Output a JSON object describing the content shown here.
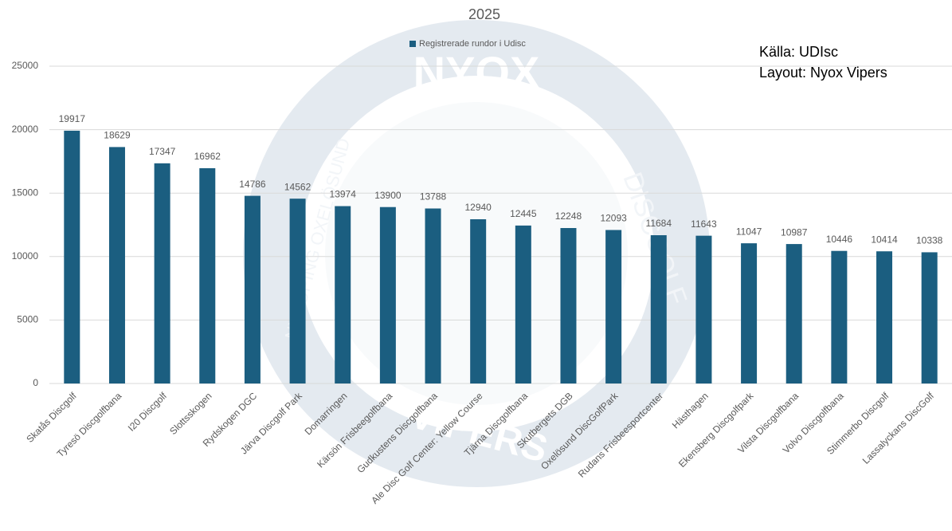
{
  "chart_data": {
    "type": "bar",
    "title": "2025",
    "legend": "Registrerade rundor i Udisc",
    "annotations": [
      "Källa: UDIsc",
      "Layout: Nyox Vipers"
    ],
    "watermark": [
      "NYOX",
      "DISCGOLF",
      "NYKÖPING OXELÖSUND",
      "VIPERS"
    ],
    "categories": [
      "Skatås Discgolf",
      "Tyresö Discgolfbana",
      "I20 Discgolf",
      "Slottsskogen",
      "Rydskogen DGC",
      "Järva Discgolf Park",
      "Domarringen",
      "Kärsön Frisbeegolfbana",
      "Gudkustens Discgolfbana",
      "Ale Disc Golf Center: Yellow Course",
      "Tjärna Discgolfbana",
      "Skutbergets DGB",
      "Oxelösund DiscGolfPark",
      "Rudans Frisbeesportcenter",
      "Hästhagen",
      "Ekensberg Discgolfpark",
      "Vilsta Discgolfbana",
      "Volvo Discgolfbana",
      "Stimmerbo Discgolf",
      "Lassalyckans DiscGolf"
    ],
    "values": [
      19917,
      18629,
      17347,
      16962,
      14786,
      14562,
      13974,
      13900,
      13788,
      12940,
      12445,
      12248,
      12093,
      11684,
      11643,
      11047,
      10987,
      10446,
      10414,
      10338
    ],
    "color": "#1b5e80",
    "ylim": [
      0,
      25000
    ],
    "yticks": [
      0,
      5000,
      10000,
      15000,
      20000,
      25000
    ],
    "grid": true
  }
}
